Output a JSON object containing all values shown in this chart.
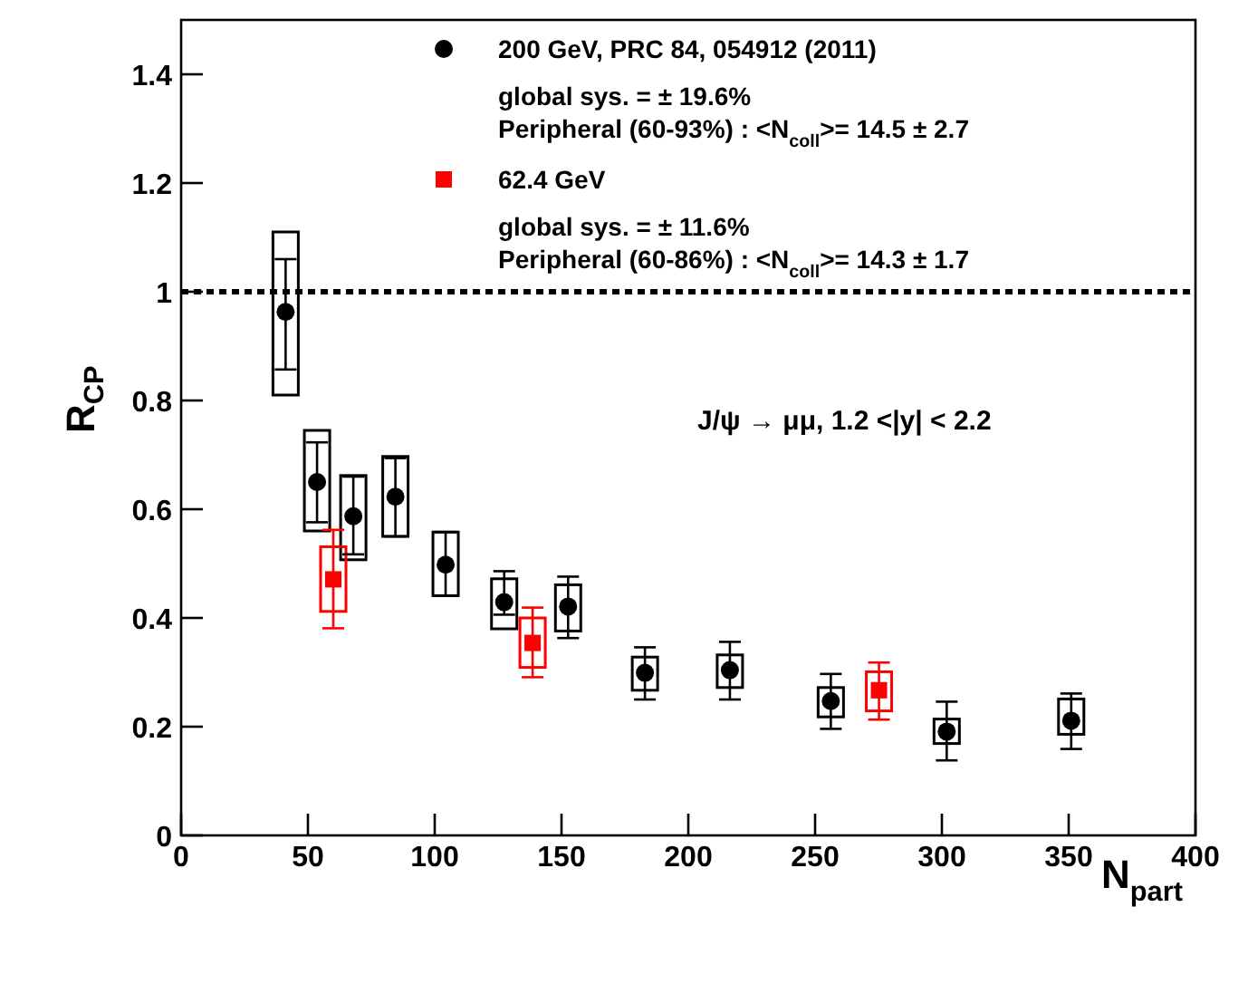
{
  "chart_data": {
    "type": "scatter",
    "xlabel": "N$_{part}$",
    "ylabel": "R$_{CP}$",
    "xlim": [
      0,
      400
    ],
    "xticks": [
      0,
      50,
      100,
      150,
      200,
      250,
      300,
      350,
      400
    ],
    "ylim": [
      0,
      1.5
    ],
    "yticks": [
      0,
      0.2,
      0.4,
      0.6,
      0.8,
      1,
      1.2,
      1.4
    ],
    "legend": "top",
    "grid": false,
    "ref_lines": [
      {
        "axis": "y",
        "value": 1,
        "color": "#000000",
        "line_style": "dotted"
      }
    ],
    "annotations": [
      "global sys. = ± 19.6%",
      "Peripheral (60-93%) : <N$_{coll}$>= 14.5 ± 2.7",
      "global sys. = ± 11.6%",
      "Peripheral (60-86%) : <N$_{coll}$>= 14.3 ± 1.7",
      "J/ψ → μμ, 1.2 <|y| < 2.2"
    ],
    "series": [
      {
        "type": "bar",
        "color": "#000000",
        "x": [
          41.2,
          53.6,
          67.9,
          84.5,
          104.3,
          127.4,
          152.6,
          182.9,
          216.4,
          256.2,
          301.9,
          351
        ],
        "base": [
          0.81,
          0.56,
          0.507,
          0.55,
          0.441,
          0.38,
          0.376,
          0.267,
          0.272,
          0.218,
          0.169,
          0.186
        ],
        "values": [
          0.3,
          0.185,
          0.155,
          0.147,
          0.117,
          0.092,
          0.085,
          0.061,
          0.06,
          0.054,
          0.045,
          0.065
        ]
      },
      {
        "type": "bar",
        "color": "#ff0000",
        "x": [
          60,
          138.6,
          275.2
        ],
        "base": [
          0.412,
          0.309,
          0.229
        ],
        "values": [
          0.119,
          0.091,
          0.072
        ]
      },
      {
        "name": "200 GeV, PRC 84, 054912 (2011)",
        "color": "#000000",
        "marker": "circle",
        "x": [
          41.2,
          53.6,
          67.9,
          84.5,
          104.3,
          127.4,
          152.6,
          182.9,
          216.4,
          256.2,
          301.9,
          351
        ],
        "values": [
          0.963,
          0.65,
          0.587,
          0.623,
          0.498,
          0.429,
          0.421,
          0.299,
          0.304,
          0.247,
          0.191,
          0.211
        ],
        "errors": [
          [
            0.857,
            1.06
          ],
          [
            0.576,
            0.723
          ],
          [
            0.517,
            0.66
          ],
          [
            0.55,
            0.694
          ],
          [
            0.441,
            0.558
          ],
          [
            0.406,
            0.486
          ],
          [
            0.363,
            0.476
          ],
          [
            0.25,
            0.346
          ],
          [
            0.25,
            0.356
          ],
          [
            0.196,
            0.297
          ],
          [
            0.138,
            0.246
          ],
          [
            0.159,
            0.261
          ]
        ]
      },
      {
        "name": "62.4 GeV",
        "color": "#ff0000",
        "marker": "square",
        "x": [
          60,
          138.6,
          275.2
        ],
        "values": [
          0.471,
          0.354,
          0.267
        ],
        "errors": [
          [
            0.381,
            0.562
          ],
          [
            0.291,
            0.419
          ],
          [
            0.213,
            0.318
          ]
        ]
      }
    ]
  }
}
